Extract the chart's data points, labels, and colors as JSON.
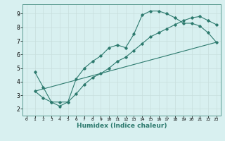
{
  "xlabel": "Humidex (Indice chaleur)",
  "ylabel": "",
  "bg_color": "#d8f0f0",
  "line_color": "#2d7a6e",
  "grid_color": "#c8dedd",
  "spine_color": "#5a9a90",
  "xlim": [
    -0.5,
    23.5
  ],
  "ylim": [
    1.5,
    9.7
  ],
  "xticks": [
    0,
    1,
    2,
    3,
    4,
    5,
    6,
    7,
    8,
    9,
    10,
    11,
    12,
    13,
    14,
    15,
    16,
    17,
    18,
    19,
    20,
    21,
    22,
    23
  ],
  "yticks": [
    2,
    3,
    4,
    5,
    6,
    7,
    8,
    9
  ],
  "line1_x": [
    1,
    2,
    3,
    4,
    5,
    6,
    7,
    8,
    9,
    10,
    11,
    12,
    13,
    14,
    15,
    16,
    17,
    18,
    19,
    20,
    21,
    22,
    23
  ],
  "line1_y": [
    4.7,
    3.6,
    2.5,
    2.5,
    2.5,
    4.2,
    5.0,
    5.5,
    5.9,
    6.5,
    6.7,
    6.5,
    7.5,
    8.9,
    9.2,
    9.2,
    9.0,
    8.7,
    8.3,
    8.3,
    8.1,
    7.6,
    6.9
  ],
  "line2_x": [
    1,
    2,
    3,
    4,
    5,
    6,
    7,
    8,
    9,
    10,
    11,
    12,
    13,
    14,
    15,
    16,
    17,
    18,
    19,
    20,
    21,
    22,
    23
  ],
  "line2_y": [
    3.3,
    2.8,
    2.5,
    2.2,
    2.5,
    3.1,
    3.8,
    4.3,
    4.6,
    5.0,
    5.5,
    5.8,
    6.3,
    6.8,
    7.3,
    7.6,
    7.9,
    8.2,
    8.5,
    8.7,
    8.8,
    8.5,
    8.2
  ],
  "line3_x": [
    1,
    23
  ],
  "line3_y": [
    3.3,
    6.9
  ]
}
